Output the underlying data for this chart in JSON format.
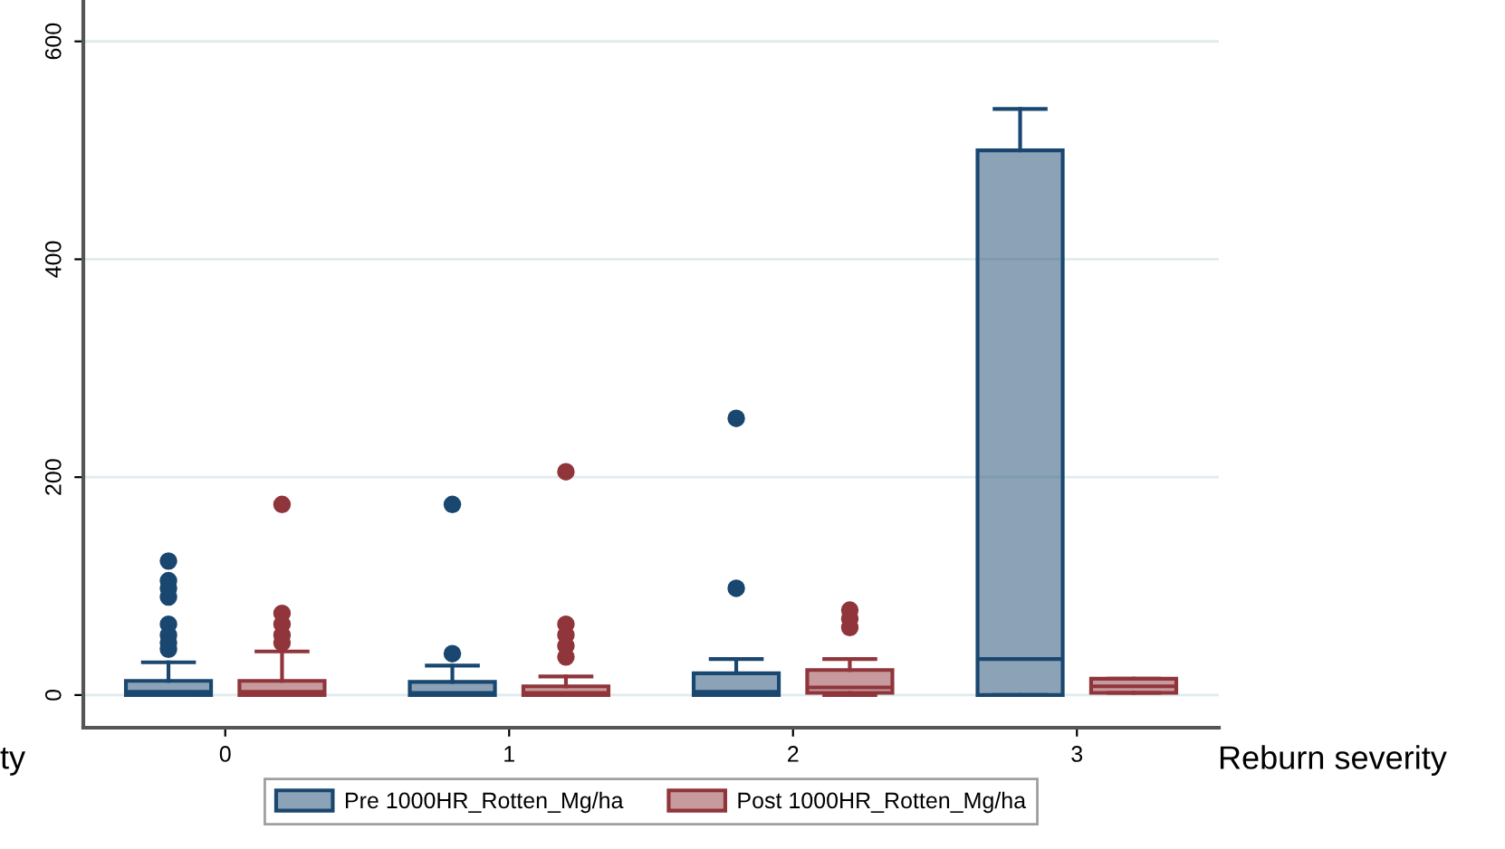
{
  "chart_data": {
    "type": "box",
    "categories": [
      "0",
      "1",
      "2",
      "3"
    ],
    "xlabel": "Reburn severity",
    "annotations": [
      "ty"
    ],
    "ylim": [
      -30,
      638
    ],
    "yticks": [
      0,
      200,
      400,
      600
    ],
    "grid": "y",
    "legend": "bottom",
    "marker": "circle",
    "series": [
      {
        "name": "Pre 1000HR_Rotten_Mg/ha",
        "color": "#1a476f",
        "boxes": [
          {
            "low": 0,
            "q1": 0,
            "median": 3,
            "q3": 13,
            "high": 30,
            "outliers": [
              123,
              105,
              98,
              90,
              65,
              55,
              48,
              42
            ]
          },
          {
            "low": 0,
            "q1": 0,
            "median": 2,
            "q3": 12,
            "high": 27,
            "outliers": [
              38,
              175
            ]
          },
          {
            "low": 0,
            "q1": 0,
            "median": 3,
            "q3": 20,
            "high": 33,
            "outliers": [
              98,
              254
            ]
          },
          {
            "low": 0,
            "q1": 0,
            "median": 33,
            "q3": 500,
            "high": 538
          }
        ]
      },
      {
        "name": "Post 1000HR_Rotten_Mg/ha",
        "color": "#90353b",
        "boxes": [
          {
            "low": 0,
            "q1": 0,
            "median": 3,
            "q3": 13,
            "high": 40,
            "outliers": [
              175,
              75,
              65,
              55,
              48
            ]
          },
          {
            "low": 0,
            "q1": 0,
            "median": 2,
            "q3": 8,
            "high": 17,
            "outliers": [
              205,
              65,
              55,
              45,
              35
            ]
          },
          {
            "low": 0,
            "q1": 2,
            "median": 7,
            "q3": 23,
            "high": 33,
            "outliers": [
              78,
              70,
              62
            ]
          },
          {
            "low": 2,
            "q1": 2,
            "median": 8,
            "q3": 15,
            "high": 15
          }
        ]
      }
    ]
  }
}
